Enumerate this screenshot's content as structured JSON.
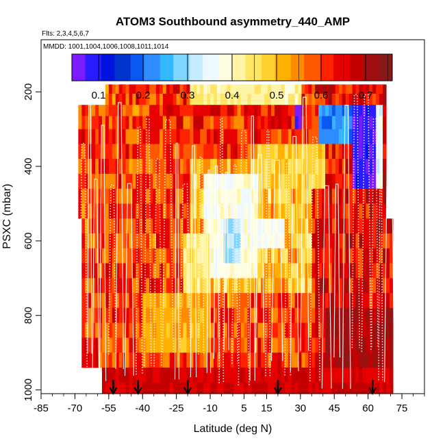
{
  "chart_data": {
    "type": "heatmap",
    "title": "ATOM3 Southbound asymmetry_440_AMP",
    "flights_note": "Flts: 2,3,4,5,6,7",
    "dates_note": "MMDD: 1001,1004,1006,1008,1011,1014",
    "xlabel": "Latitude (deg N)",
    "ylabel": "PSXC (mbar)",
    "xlim": [
      -85,
      85
    ],
    "ylim": [
      1010,
      60
    ],
    "y_reversed": true,
    "x_ticks": [
      "-85",
      "-70",
      "-55",
      "-40",
      "-25",
      "-10",
      "5",
      "15",
      "30",
      "45",
      "60",
      "75"
    ],
    "y_ticks": [
      "200",
      "400",
      "600",
      "800",
      "1000"
    ],
    "colorbar": {
      "range": [
        0.04,
        0.76
      ],
      "ticks": [
        "0.1",
        "0.2",
        "0.3",
        "0.4",
        "0.5",
        "0.6",
        "0.7"
      ],
      "colors": [
        "#7a1cff",
        "#2b1cff",
        "#0014e0",
        "#0033cc",
        "#0a58f0",
        "#2f8cff",
        "#33b8ff",
        "#7fd6ff",
        "#c6eaff",
        "#eef8ff",
        "#fffde0",
        "#fff5a8",
        "#ffe566",
        "#ffd02e",
        "#ffb000",
        "#ff8c00",
        "#ff5a00",
        "#ff2200",
        "#e60000",
        "#c40000",
        "#9e1010",
        "#8a1a1a"
      ]
    },
    "pressure_levels": [
      190,
      220,
      250,
      280,
      320,
      360,
      400,
      440,
      480,
      520,
      560,
      600,
      640,
      680,
      720,
      760,
      800,
      840,
      880,
      920,
      960,
      1000
    ],
    "lat_grid": [
      -69,
      -66,
      -63,
      -60,
      -57,
      -54,
      -51,
      -48,
      -45,
      -42,
      -39,
      -36,
      -33,
      -30,
      -27,
      -24,
      -21,
      -18,
      -15,
      -12,
      -9,
      -6,
      -3,
      0,
      3,
      6,
      9,
      12,
      15,
      18,
      21,
      24,
      27,
      30,
      33,
      36,
      39,
      42,
      45,
      48,
      51,
      54,
      57,
      60,
      63,
      66,
      69
    ],
    "coverage": [
      {
        "lat_min": -57,
        "lat_max": 68,
        "p_min": 180,
        "p_max": 240
      },
      {
        "lat_min": -69,
        "lat_max": 68,
        "p_min": 240,
        "p_max": 540
      },
      {
        "lat_min": -68,
        "lat_max": 70,
        "p_min": 540,
        "p_max": 960
      },
      {
        "lat_min": -58,
        "lat_max": 70,
        "p_min": 960,
        "p_max": 1010
      }
    ],
    "anomalies": [
      {
        "lat_min": 37,
        "lat_max": 52,
        "p_min": 240,
        "p_max": 340,
        "value": 0.22
      },
      {
        "lat_min": 52,
        "lat_max": 63,
        "p_min": 230,
        "p_max": 480,
        "value": 0.08
      },
      {
        "lat_min": 63,
        "lat_max": 66,
        "p_min": 230,
        "p_max": 480,
        "value": 0.35
      },
      {
        "lat_min": 27,
        "lat_max": 30,
        "p_min": 210,
        "p_max": 290,
        "value": 0.06
      },
      {
        "lat_min": -14,
        "lat_max": 10,
        "p_min": 420,
        "p_max": 700,
        "value": 0.38
      },
      {
        "lat_min": -4,
        "lat_max": 3,
        "p_min": 540,
        "p_max": 660,
        "value": 0.3
      },
      {
        "lat_min": -22,
        "lat_max": -10,
        "p_min": 600,
        "p_max": 740,
        "value": 0.44
      },
      {
        "lat_min": 10,
        "lat_max": 22,
        "p_min": 560,
        "p_max": 640,
        "value": 0.36
      },
      {
        "lat_min": -20,
        "lat_max": 30,
        "p_min": 180,
        "p_max": 240,
        "value": 0.42
      },
      {
        "lat_min": -70,
        "lat_max": -60,
        "p_min": 860,
        "p_max": 960,
        "value": 0.65
      },
      {
        "lat_min": 40,
        "lat_max": 70,
        "p_min": 800,
        "p_max": 960,
        "value": 0.7
      },
      {
        "lat_min": -58,
        "lat_max": 70,
        "p_min": 960,
        "p_max": 1010,
        "value": 0.66
      },
      {
        "lat_min": -40,
        "lat_max": -10,
        "p_min": 760,
        "p_max": 900,
        "value": 0.52
      },
      {
        "lat_min": 10,
        "lat_max": 40,
        "p_min": 360,
        "p_max": 480,
        "value": 0.48
      }
    ],
    "flight_markers_lat": [
      -53,
      -42,
      -20,
      20,
      62
    ]
  }
}
